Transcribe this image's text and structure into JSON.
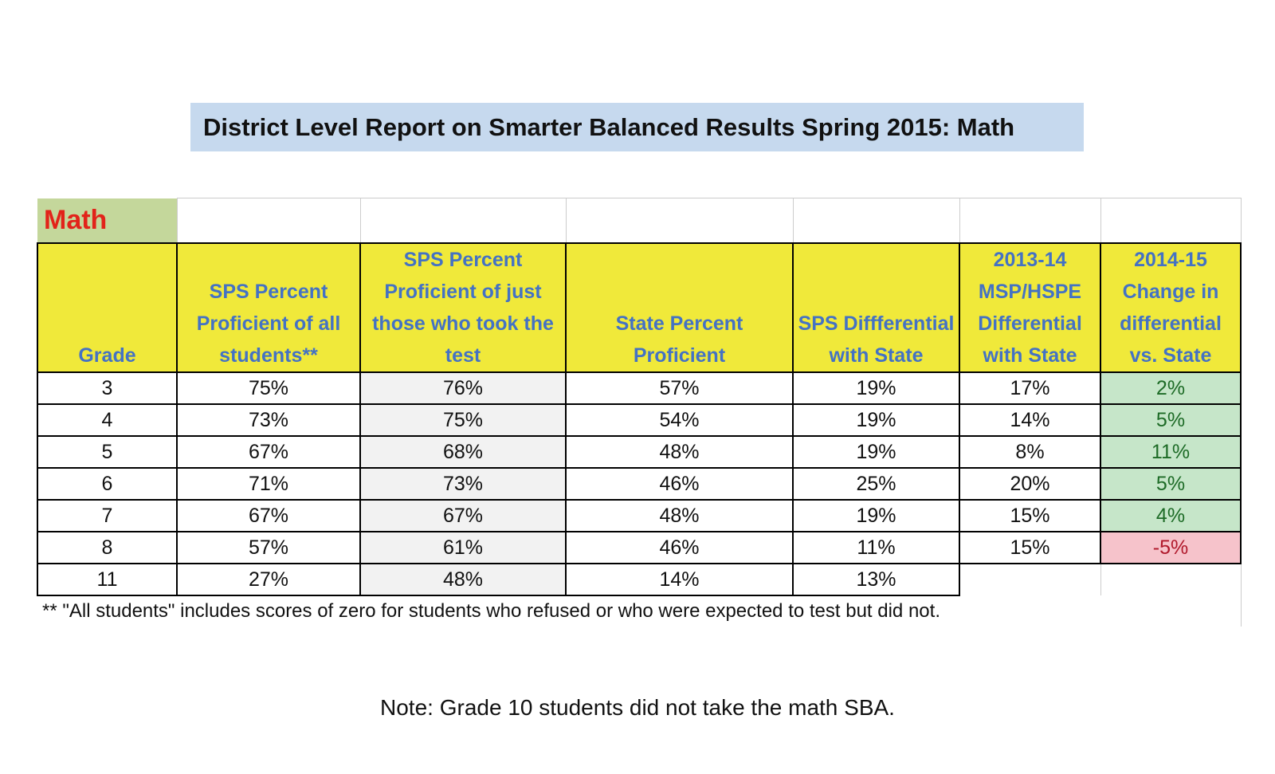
{
  "title": "District Level Report on Smarter Balanced Results Spring 2015: Math",
  "table": {
    "corner_label": "Math",
    "columns": [
      "Grade",
      "SPS Percent Proficient of all students**",
      "SPS Percent Proficient of just those who took the test",
      "State Percent Proficient",
      "SPS Diffferential with State",
      "2013-14 MSP/HSPE Differential with State",
      "2014-15 Change in differential vs. State"
    ],
    "rows": [
      [
        "3",
        "75%",
        "76%",
        "57%",
        "19%",
        "17%",
        "2%"
      ],
      [
        "4",
        "73%",
        "75%",
        "54%",
        "19%",
        "14%",
        "5%"
      ],
      [
        "5",
        "67%",
        "68%",
        "48%",
        "19%",
        "8%",
        "11%"
      ],
      [
        "6",
        "71%",
        "73%",
        "46%",
        "25%",
        "20%",
        "5%"
      ],
      [
        "7",
        "67%",
        "67%",
        "48%",
        "19%",
        "15%",
        "4%"
      ],
      [
        "8",
        "57%",
        "61%",
        "46%",
        "11%",
        "15%",
        "-5%"
      ],
      [
        "11",
        "27%",
        "48%",
        "14%",
        "13%"
      ]
    ],
    "footnote": "** \"All students\" includes scores of zero for students who refused or who were expected to test but did not."
  },
  "note": "Note: Grade 10 students did not take the math SBA."
}
